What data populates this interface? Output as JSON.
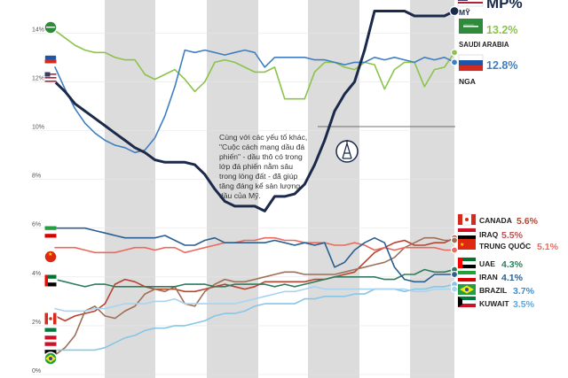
{
  "chart_data": {
    "type": "line",
    "ylim": [
      0,
      15.5
    ],
    "y_ticks": [
      "14%",
      "12%",
      "10%",
      "8%",
      "6%",
      "4%",
      "2%",
      "0%"
    ],
    "y_tick_values": [
      14,
      12,
      10,
      8,
      6,
      4,
      2,
      0
    ],
    "x_count": 41,
    "header_partial": "MP%",
    "colors": {
      "us": "#1b2a4a",
      "saudi": "#8cc34a",
      "russia": "#3f7fc1",
      "canada": "#b8432e",
      "iraq": "#a06f57",
      "china": "#ea6a5e",
      "uae": "#2e7d5d",
      "iran": "#2a5f8f",
      "brazil": "#86c7e6",
      "kuwait": "#a9d3ef",
      "band": "#dcdcdc"
    },
    "annotation": [
      "Cùng với các yếu tố khác,",
      "\"Cuộc cách mạng dầu đá",
      "phiến\" - dầu thô có trong",
      "lớp đá phiến nằm sâu",
      "trong lòng đất - đã giúp",
      "tăng đáng kể sản lượng",
      "dầu của Mỹ."
    ],
    "series": [
      {
        "key": "us",
        "name": "MỸ",
        "value_label": "",
        "values": [
          12,
          11.6,
          11.1,
          10.8,
          10.5,
          10.2,
          9.9,
          9.6,
          9.3,
          9.1,
          8.8,
          8.7,
          8.7,
          8.7,
          8.6,
          8.2,
          7.6,
          7.1,
          6.9,
          6.9,
          6.9,
          6.7,
          7.3,
          7.3,
          7.4,
          7.8,
          8.6,
          9.6,
          10.8,
          11.5,
          12,
          13.3,
          14.9,
          14.9,
          14.9,
          14.9,
          14.7,
          14.7,
          14.7,
          14.7,
          14.9
        ]
      },
      {
        "key": "saudi",
        "name": "SAUDI ARABIA",
        "value_label": "13.2%",
        "values": [
          14.1,
          13.8,
          13.5,
          13.3,
          13.2,
          13.2,
          13,
          12.9,
          12.9,
          12.3,
          12.1,
          12.3,
          12.5,
          12.1,
          11.6,
          12,
          12.8,
          12.9,
          12.8,
          12.6,
          12.4,
          12.4,
          12.6,
          11.3,
          11.3,
          11.3,
          12.4,
          12.8,
          12.8,
          12.6,
          12.5,
          12.8,
          12.7,
          11.7,
          12.5,
          12.8,
          12.8,
          11.8,
          12.5,
          12.6,
          13.2
        ]
      },
      {
        "key": "russia",
        "name": "NGA",
        "value_label": "12.8%",
        "values": [
          12.6,
          11.7,
          10.9,
          10.3,
          9.9,
          9.6,
          9.4,
          9.3,
          9.1,
          9.2,
          9.7,
          10.6,
          11.8,
          13.3,
          13.2,
          13.3,
          13.2,
          13.1,
          13.2,
          13.3,
          13.2,
          12.6,
          13,
          13,
          13,
          13,
          12.9,
          12.9,
          12.8,
          12.7,
          12.8,
          12.8,
          13,
          12.9,
          13,
          12.9,
          12.8,
          13,
          12.9,
          13,
          12.8
        ]
      },
      {
        "key": "canada",
        "name": "CANADA",
        "value_label": "5.6%",
        "values": [
          2.4,
          2.2,
          2.4,
          2.5,
          2.6,
          2.9,
          3.7,
          3.9,
          3.8,
          3.6,
          3.5,
          3.5,
          3.5,
          3.4,
          3.4,
          3.5,
          3.6,
          3.7,
          3.6,
          3.5,
          3.6,
          3.8,
          3.8,
          3.8,
          3.8,
          3.8,
          3.9,
          3.9,
          4,
          4.1,
          4.2,
          4.6,
          5,
          5.2,
          5.4,
          5.5,
          5.3,
          5.3,
          5.4,
          5.4,
          5.6
        ]
      },
      {
        "key": "iraq",
        "name": "IRAQ",
        "value_label": "5.5%",
        "values": [
          0.8,
          1.1,
          1.6,
          2.6,
          2.8,
          2.4,
          2.3,
          2.6,
          2.8,
          3.3,
          3.5,
          3.4,
          3.6,
          2.9,
          2.8,
          3.4,
          3.7,
          3.9,
          3.8,
          3.8,
          3.9,
          4,
          4.1,
          4.2,
          4.2,
          4.1,
          4.1,
          4.1,
          4.1,
          4.2,
          4.3,
          4.4,
          4.5,
          4.6,
          4.8,
          5.2,
          5.4,
          5.6,
          5.6,
          5.5,
          5.5
        ]
      },
      {
        "key": "china",
        "name": "TRUNG QUỐC",
        "value_label": "5.1%",
        "values": [
          5.2,
          5.2,
          5.2,
          5.1,
          5,
          5,
          5,
          5.1,
          5.2,
          5.2,
          5.1,
          5.2,
          5.2,
          5,
          5.1,
          5.2,
          5.3,
          5.4,
          5.4,
          5.5,
          5.5,
          5.6,
          5.6,
          5.5,
          5.5,
          5.4,
          5.4,
          5.4,
          5.3,
          5.3,
          5.4,
          5.3,
          5.1,
          5.2,
          5.1,
          5.2,
          5.2,
          5.2,
          5.2,
          5.1,
          5.1
        ]
      },
      {
        "key": "uae",
        "name": "UAE",
        "value_label": "4.3%",
        "values": [
          3.9,
          3.8,
          3.7,
          3.6,
          3.7,
          3.7,
          3.6,
          3.6,
          3.6,
          3.6,
          3.6,
          3.6,
          3.6,
          3.7,
          3.7,
          3.7,
          3.6,
          3.6,
          3.7,
          3.7,
          3.7,
          3.7,
          3.6,
          3.7,
          3.6,
          3.7,
          3.8,
          3.9,
          4,
          4,
          4,
          4,
          4,
          3.9,
          3.9,
          4.1,
          4.1,
          4.3,
          4.2,
          4.2,
          4.3
        ]
      },
      {
        "key": "iran",
        "name": "IRAN",
        "value_label": "4.1%",
        "values": [
          6,
          6,
          6,
          6,
          5.9,
          5.8,
          5.7,
          5.6,
          5.6,
          5.6,
          5.6,
          5.7,
          5.5,
          5.3,
          5.3,
          5.5,
          5.6,
          5.4,
          5.4,
          5.4,
          5.4,
          5.4,
          5.5,
          5.4,
          5.3,
          5.4,
          5.3,
          5.4,
          4.4,
          4.6,
          5.1,
          5.4,
          5.6,
          5.4,
          4.4,
          3.9,
          3.8,
          3.8,
          4.1,
          4.1,
          4.1
        ]
      },
      {
        "key": "brazil",
        "name": "BRAZIL",
        "value_label": "3.7%",
        "values": [
          1,
          1,
          1,
          1,
          1,
          1.1,
          1.3,
          1.5,
          1.6,
          1.8,
          1.9,
          1.9,
          2,
          2,
          2.1,
          2.2,
          2.4,
          2.5,
          2.5,
          2.6,
          2.8,
          2.9,
          2.9,
          2.9,
          2.9,
          3.1,
          3.1,
          3.2,
          3.2,
          3.2,
          3.3,
          3.3,
          3.5,
          3.5,
          3.5,
          3.4,
          3.5,
          3.5,
          3.6,
          3.6,
          3.7
        ]
      },
      {
        "key": "kuwait",
        "name": "KUWAIT",
        "value_label": "3.5%",
        "values": [
          2.7,
          2.6,
          2.6,
          2.6,
          2.7,
          2.7,
          2.8,
          2.9,
          2.9,
          2.9,
          3,
          3,
          3.1,
          2.9,
          2.9,
          2.9,
          2.9,
          2.9,
          2.9,
          3,
          3.1,
          3.2,
          3.3,
          3.4,
          3.4,
          3.5,
          3.6,
          3.5,
          3.5,
          3.5,
          3.5,
          3.5,
          3.5,
          3.5,
          3.5,
          3.5,
          3.4,
          3.4,
          3.5,
          3.5,
          3.5
        ]
      }
    ]
  }
}
